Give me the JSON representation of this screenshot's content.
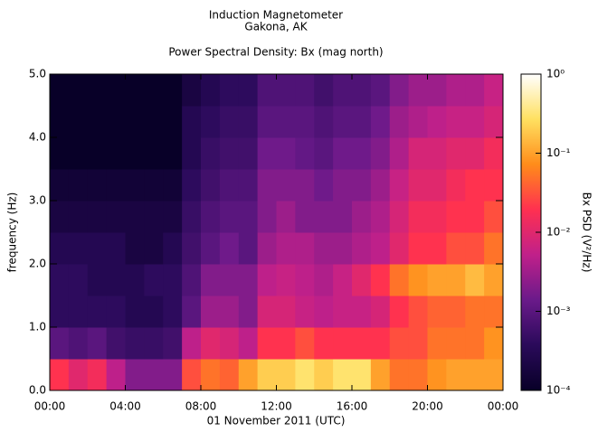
{
  "chart_data": {
    "type": "heatmap",
    "title": "Induction Magnetometer",
    "subtitle": "Gakona, AK",
    "plot_title": "Power Spectral Density: Bx (mag north)",
    "x_label": "01 November 2011 (UTC)",
    "y_label": "frequency (Hz)",
    "colorbar_label": "Bx PSD (V²/Hz)",
    "xlim": [
      0,
      24
    ],
    "xticks": [
      {
        "value": 0,
        "label": "00:00"
      },
      {
        "value": 4,
        "label": "04:00"
      },
      {
        "value": 8,
        "label": "08:00"
      },
      {
        "value": 12,
        "label": "12:00"
      },
      {
        "value": 16,
        "label": "16:00"
      },
      {
        "value": 20,
        "label": "20:00"
      },
      {
        "value": 24,
        "label": "00:00"
      }
    ],
    "ylim": [
      0,
      5
    ],
    "yticks": [
      {
        "value": 0,
        "label": "0.0"
      },
      {
        "value": 1,
        "label": "1.0"
      },
      {
        "value": 2,
        "label": "2.0"
      },
      {
        "value": 3,
        "label": "3.0"
      },
      {
        "value": 4,
        "label": "4.0"
      },
      {
        "value": 5,
        "label": "5.0"
      }
    ],
    "x_bins": [
      0,
      1,
      2,
      3,
      4,
      5,
      6,
      7,
      8,
      9,
      10,
      11,
      12,
      13,
      14,
      15,
      16,
      17,
      18,
      19,
      20,
      21,
      22,
      23,
      24
    ],
    "y_bins": [
      0,
      0.5,
      1,
      1.5,
      2,
      2.5,
      3,
      3.5,
      4,
      4.5,
      5
    ],
    "color_scale": "log",
    "clim": [
      0.0001,
      1
    ],
    "cticks": [
      {
        "value": 1,
        "label": "10⁰"
      },
      {
        "value": 0.1,
        "label": "10⁻¹"
      },
      {
        "value": 0.01,
        "label": "10⁻²"
      },
      {
        "value": 0.001,
        "label": "10⁻³"
      },
      {
        "value": 0.0001,
        "label": "10⁻⁴"
      }
    ],
    "colormap": [
      "#080028",
      "#2a0a5a",
      "#6a1a8a",
      "#c0208a",
      "#ff3050",
      "#ff8c1a",
      "#ffe060",
      "#ffffff"
    ],
    "z": [
      [
        0.02,
        0.01,
        0.015,
        0.005,
        0.002,
        0.002,
        0.002,
        0.03,
        0.05,
        0.04,
        0.1,
        0.2,
        0.2,
        0.3,
        0.2,
        0.3,
        0.3,
        0.1,
        0.05,
        0.05,
        0.08,
        0.1,
        0.1,
        0.1
      ],
      [
        0.001,
        0.0008,
        0.001,
        0.0006,
        0.0005,
        0.0005,
        0.0006,
        0.005,
        0.01,
        0.008,
        0.005,
        0.02,
        0.02,
        0.03,
        0.02,
        0.02,
        0.02,
        0.02,
        0.03,
        0.03,
        0.05,
        0.05,
        0.05,
        0.08
      ],
      [
        0.0004,
        0.0004,
        0.0004,
        0.0004,
        0.0003,
        0.0003,
        0.0004,
        0.001,
        0.003,
        0.003,
        0.002,
        0.008,
        0.008,
        0.006,
        0.005,
        0.006,
        0.006,
        0.008,
        0.02,
        0.03,
        0.04,
        0.04,
        0.05,
        0.05
      ],
      [
        0.0004,
        0.0004,
        0.0003,
        0.0003,
        0.0003,
        0.0004,
        0.0004,
        0.0008,
        0.002,
        0.002,
        0.002,
        0.005,
        0.006,
        0.005,
        0.004,
        0.006,
        0.01,
        0.02,
        0.05,
        0.08,
        0.1,
        0.1,
        0.15,
        0.1
      ],
      [
        0.0003,
        0.0003,
        0.0003,
        0.0003,
        0.0002,
        0.0002,
        0.0003,
        0.0006,
        0.001,
        0.0015,
        0.001,
        0.003,
        0.004,
        0.004,
        0.003,
        0.003,
        0.004,
        0.005,
        0.01,
        0.02,
        0.02,
        0.03,
        0.03,
        0.05
      ],
      [
        0.0002,
        0.0002,
        0.0002,
        0.0002,
        0.0002,
        0.0002,
        0.0002,
        0.0005,
        0.0008,
        0.001,
        0.001,
        0.002,
        0.003,
        0.002,
        0.002,
        0.002,
        0.003,
        0.004,
        0.008,
        0.015,
        0.015,
        0.02,
        0.02,
        0.03
      ],
      [
        0.00015,
        0.00015,
        0.00015,
        0.00015,
        0.00015,
        0.00015,
        0.00015,
        0.0004,
        0.0006,
        0.0008,
        0.0008,
        0.002,
        0.002,
        0.002,
        0.0015,
        0.002,
        0.002,
        0.003,
        0.006,
        0.01,
        0.01,
        0.015,
        0.02,
        0.02
      ],
      [
        0.0001,
        0.0001,
        0.0001,
        0.0001,
        0.0001,
        0.0001,
        0.0001,
        0.0003,
        0.0005,
        0.0006,
        0.0006,
        0.0015,
        0.0015,
        0.0012,
        0.001,
        0.0015,
        0.0015,
        0.002,
        0.004,
        0.008,
        0.008,
        0.01,
        0.01,
        0.015
      ],
      [
        0.0001,
        0.0001,
        0.0001,
        0.0001,
        0.0001,
        0.0001,
        0.0001,
        0.0003,
        0.0004,
        0.0005,
        0.0005,
        0.001,
        0.001,
        0.001,
        0.0008,
        0.001,
        0.001,
        0.0015,
        0.003,
        0.004,
        0.005,
        0.006,
        0.006,
        0.008
      ],
      [
        0.0001,
        0.0001,
        0.0001,
        0.0001,
        0.0001,
        0.0001,
        0.0001,
        0.0002,
        0.0003,
        0.0004,
        0.0004,
        0.0008,
        0.0008,
        0.0008,
        0.0006,
        0.0008,
        0.0008,
        0.001,
        0.002,
        0.003,
        0.003,
        0.004,
        0.004,
        0.006
      ]
    ]
  }
}
